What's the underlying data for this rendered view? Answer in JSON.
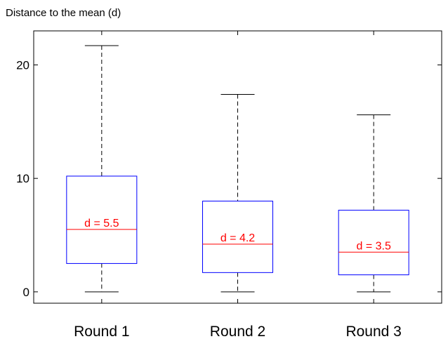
{
  "chart_data": {
    "type": "box",
    "title": "",
    "ylabel": "Distance to the mean (d)",
    "xlabel": "",
    "ylim": [
      -1,
      23
    ],
    "yticks": [
      0,
      10,
      20
    ],
    "grid": false,
    "categories": [
      "Round 1",
      "Round 2",
      "Round 3"
    ],
    "boxes": [
      {
        "category": "Round 1",
        "min": 0,
        "q1": 2.5,
        "median": 5.5,
        "q3": 10.2,
        "max": 21.7,
        "label": "d = 5.5"
      },
      {
        "category": "Round 2",
        "min": 0,
        "q1": 1.7,
        "median": 4.2,
        "q3": 8.0,
        "max": 17.4,
        "label": "d = 4.2"
      },
      {
        "category": "Round 3",
        "min": 0,
        "q1": 1.5,
        "median": 3.5,
        "q3": 7.2,
        "max": 15.6,
        "label": "d = 3.5"
      }
    ],
    "colors": {
      "box": "#0000ff",
      "median": "#ff0000",
      "whisker": "#000000",
      "label": "#ff0000"
    }
  }
}
